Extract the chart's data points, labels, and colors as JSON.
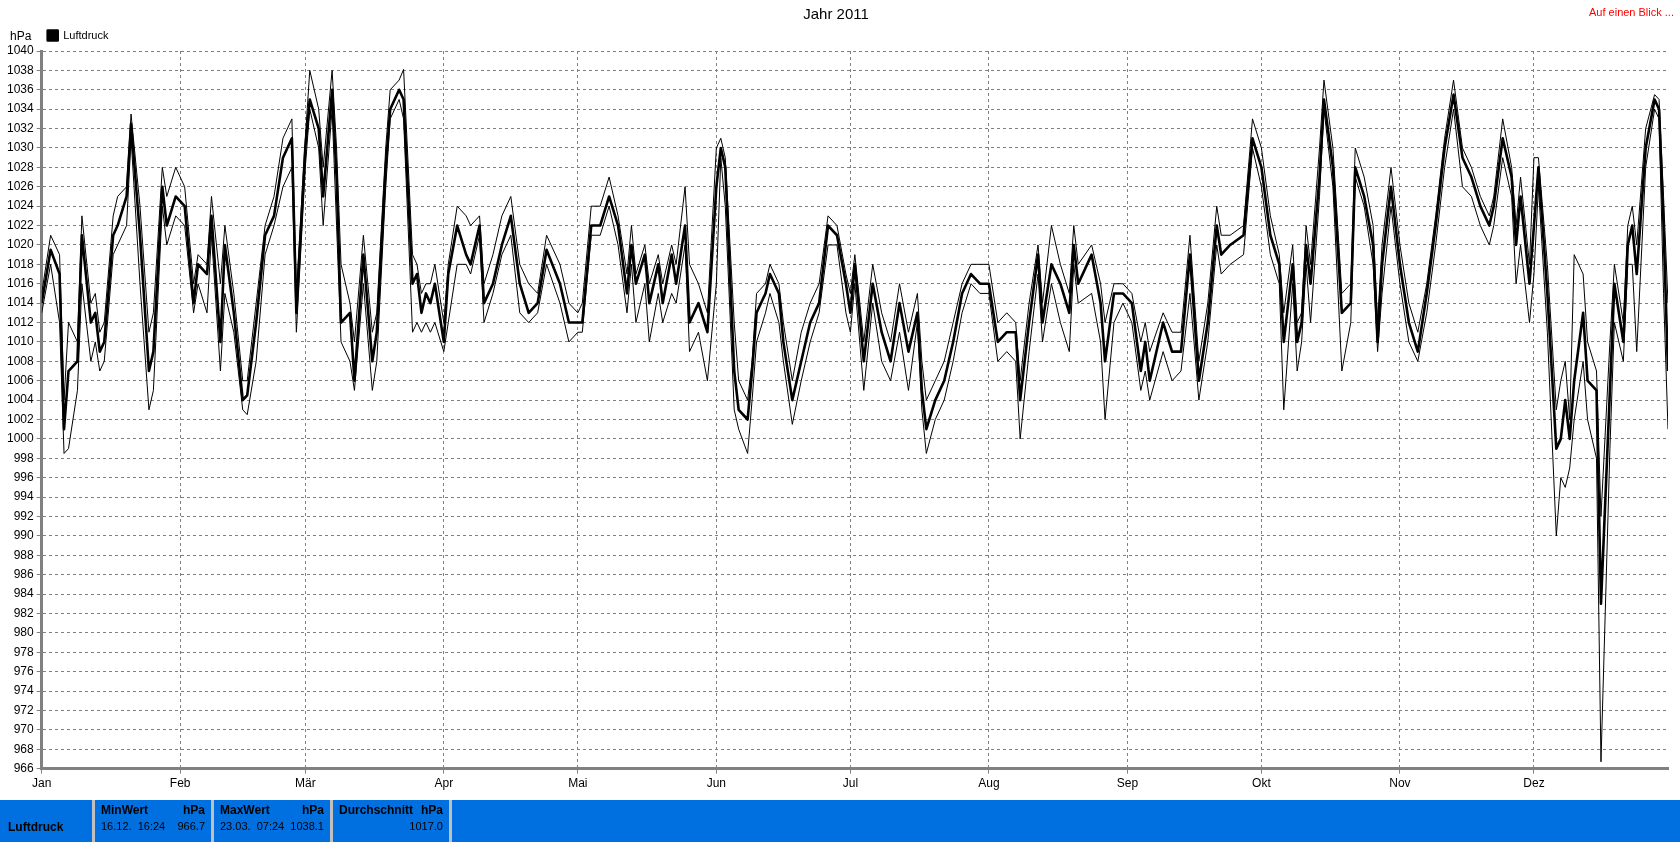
{
  "chart_data": {
    "type": "line",
    "title": "Jahr 2011",
    "ylabel": "hPa",
    "x": [
      "2011-01-01",
      "2011-01-03",
      "2011-01-05",
      "2011-01-06",
      "2011-01-07",
      "2011-01-09",
      "2011-01-10",
      "2011-01-12",
      "2011-01-13",
      "2011-01-14",
      "2011-01-15",
      "2011-01-17",
      "2011-01-18",
      "2011-01-20",
      "2011-01-21",
      "2011-01-23",
      "2011-01-25",
      "2011-01-26",
      "2011-01-28",
      "2011-01-29",
      "2011-01-31",
      "2011-02-02",
      "2011-02-04",
      "2011-02-05",
      "2011-02-07",
      "2011-02-08",
      "2011-02-10",
      "2011-02-11",
      "2011-02-13",
      "2011-02-15",
      "2011-02-16",
      "2011-02-18",
      "2011-02-20",
      "2011-02-22",
      "2011-02-24",
      "2011-02-26",
      "2011-02-27",
      "2011-03-01",
      "2011-03-02",
      "2011-03-04",
      "2011-03-05",
      "2011-03-07",
      "2011-03-08",
      "2011-03-09",
      "2011-03-11",
      "2011-03-12",
      "2011-03-14",
      "2011-03-16",
      "2011-03-17",
      "2011-03-19",
      "2011-03-20",
      "2011-03-22",
      "2011-03-23",
      "2011-03-25",
      "2011-03-26",
      "2011-03-27",
      "2011-03-28",
      "2011-03-29",
      "2011-03-30",
      "2011-04-01",
      "2011-04-02",
      "2011-04-04",
      "2011-04-06",
      "2011-04-07",
      "2011-04-09",
      "2011-04-10",
      "2011-04-12",
      "2011-04-14",
      "2011-04-16",
      "2011-04-18",
      "2011-04-20",
      "2011-04-22",
      "2011-04-24",
      "2011-04-27",
      "2011-04-29",
      "2011-05-01",
      "2011-05-02",
      "2011-05-04",
      "2011-05-06",
      "2011-05-08",
      "2011-05-10",
      "2011-05-12",
      "2011-05-13",
      "2011-05-14",
      "2011-05-16",
      "2011-05-17",
      "2011-05-19",
      "2011-05-20",
      "2011-05-22",
      "2011-05-23",
      "2011-05-25",
      "2011-05-26",
      "2011-05-28",
      "2011-05-30",
      "2011-06-01",
      "2011-06-02",
      "2011-06-03",
      "2011-06-05",
      "2011-06-06",
      "2011-06-08",
      "2011-06-09",
      "2011-06-10",
      "2011-06-12",
      "2011-06-13",
      "2011-06-15",
      "2011-06-16",
      "2011-06-18",
      "2011-06-20",
      "2011-06-22",
      "2011-06-24",
      "2011-06-26",
      "2011-06-28",
      "2011-06-30",
      "2011-07-01",
      "2011-07-02",
      "2011-07-04",
      "2011-07-06",
      "2011-07-08",
      "2011-07-10",
      "2011-07-12",
      "2011-07-14",
      "2011-07-16",
      "2011-07-17",
      "2011-07-18",
      "2011-07-20",
      "2011-07-22",
      "2011-07-24",
      "2011-07-26",
      "2011-07-28",
      "2011-07-30",
      "2011-08-01",
      "2011-08-03",
      "2011-08-05",
      "2011-08-07",
      "2011-08-08",
      "2011-08-10",
      "2011-08-12",
      "2011-08-13",
      "2011-08-15",
      "2011-08-17",
      "2011-08-19",
      "2011-08-20",
      "2011-08-21",
      "2011-08-24",
      "2011-08-26",
      "2011-08-27",
      "2011-08-29",
      "2011-08-31",
      "2011-09-02",
      "2011-09-04",
      "2011-09-05",
      "2011-09-06",
      "2011-09-09",
      "2011-09-11",
      "2011-09-13",
      "2011-09-15",
      "2011-09-17",
      "2011-09-19",
      "2011-09-21",
      "2011-09-22",
      "2011-09-24",
      "2011-09-27",
      "2011-09-29",
      "2011-10-01",
      "2011-10-03",
      "2011-10-05",
      "2011-10-06",
      "2011-10-08",
      "2011-10-09",
      "2011-10-10",
      "2011-10-11",
      "2011-10-12",
      "2011-10-14",
      "2011-10-15",
      "2011-10-17",
      "2011-10-19",
      "2011-10-21",
      "2011-10-22",
      "2011-10-24",
      "2011-10-26",
      "2011-10-27",
      "2011-10-28",
      "2011-10-30",
      "2011-11-01",
      "2011-11-03",
      "2011-11-05",
      "2011-11-07",
      "2011-11-09",
      "2011-11-11",
      "2011-11-13",
      "2011-11-15",
      "2011-11-17",
      "2011-11-19",
      "2011-11-21",
      "2011-11-22",
      "2011-11-24",
      "2011-11-26",
      "2011-11-27",
      "2011-11-28",
      "2011-11-30",
      "2011-12-01",
      "2011-12-02",
      "2011-12-04",
      "2011-12-06",
      "2011-12-07",
      "2011-12-08",
      "2011-12-09",
      "2011-12-10",
      "2011-12-12",
      "2011-12-13",
      "2011-12-15",
      "2011-12-16",
      "2011-12-18",
      "2011-12-19",
      "2011-12-21",
      "2011-12-22",
      "2011-12-23",
      "2011-12-24",
      "2011-12-26",
      "2011-12-28",
      "2011-12-29",
      "2011-12-30",
      "2011-12-31"
    ],
    "series": [
      {
        "color": "#000000",
        "values": [
          1015,
          1021,
          1019,
          1004,
          1012,
          1010,
          1023,
          1014,
          1015,
          1011,
          1012,
          1023,
          1025,
          1026,
          1033.5,
          1024,
          1011,
          1013,
          1028,
          1025,
          1028,
          1026,
          1016,
          1019,
          1018,
          1025,
          1016,
          1022,
          1015,
          1006,
          1006,
          1014,
          1022,
          1025,
          1031,
          1033,
          1015,
          1031,
          1038,
          1034,
          1028,
          1038,
          1030,
          1018,
          1014,
          1010,
          1021,
          1011,
          1013,
          1030,
          1036,
          1037,
          1038.1,
          1019,
          1018,
          1015,
          1016,
          1016,
          1018,
          1012,
          1018,
          1024,
          1023,
          1022,
          1023,
          1016,
          1019,
          1023,
          1025,
          1018,
          1016,
          1015,
          1021,
          1018,
          1014,
          1013,
          1014,
          1024,
          1024,
          1027,
          1023,
          1017,
          1022,
          1017,
          1020,
          1016,
          1019,
          1016,
          1020,
          1018,
          1026,
          1018,
          1016,
          1013,
          1030,
          1031,
          1029,
          1012,
          1006,
          1004,
          1008,
          1015,
          1016,
          1018,
          1016,
          1012,
          1006,
          1011,
          1014,
          1016,
          1023,
          1022,
          1017,
          1015,
          1019,
          1010,
          1018,
          1013,
          1010,
          1016,
          1011,
          1015,
          1008,
          1004,
          1006,
          1008,
          1012,
          1016,
          1018,
          1018,
          1018,
          1012,
          1013,
          1012,
          1006,
          1014,
          1020,
          1014,
          1022,
          1018,
          1015,
          1022,
          1018,
          1020,
          1016,
          1012,
          1016,
          1016,
          1015,
          1010,
          1012,
          1009,
          1013,
          1011,
          1011,
          1021,
          1008,
          1014,
          1024,
          1021,
          1021,
          1022,
          1033,
          1030,
          1023,
          1019,
          1013,
          1020,
          1012,
          1013,
          1022,
          1018,
          1030,
          1037,
          1030,
          1015,
          1016,
          1030,
          1027,
          1022,
          1012,
          1020,
          1028,
          1020,
          1014,
          1011,
          1016,
          1023,
          1031,
          1037,
          1030,
          1028,
          1025,
          1023,
          1025,
          1033,
          1028,
          1022,
          1027,
          1018,
          1029,
          1029,
          1018,
          1003,
          1006,
          1008,
          1002,
          1019,
          1017,
          1010,
          1007,
          992,
          1010,
          1018,
          1012,
          1022,
          1024,
          1020,
          1032,
          1035.5,
          1035,
          1025,
          1014
        ]
      },
      {
        "name": "Luftdruck",
        "color": "#000000",
        "values": [
          1014,
          1019.5,
          1017,
          1001,
          1007,
          1008,
          1021,
          1012,
          1013,
          1009,
          1010,
          1021,
          1022,
          1025,
          1032.5,
          1021,
          1007,
          1009,
          1026,
          1022,
          1025,
          1024,
          1014,
          1018,
          1017,
          1023,
          1010,
          1020,
          1013,
          1004,
          1004.5,
          1012,
          1021,
          1023,
          1029,
          1031,
          1013,
          1030,
          1035,
          1032,
          1025,
          1036,
          1027,
          1012,
          1013,
          1006,
          1019,
          1008,
          1011,
          1028,
          1034,
          1036,
          1035,
          1016,
          1017,
          1013,
          1015,
          1014,
          1016,
          1010,
          1017,
          1022,
          1019,
          1018,
          1022,
          1014,
          1016,
          1020,
          1023,
          1016,
          1013,
          1014,
          1019.5,
          1016,
          1012,
          1012,
          1012,
          1022,
          1022,
          1025,
          1022,
          1015,
          1020,
          1016,
          1019,
          1014,
          1018,
          1014,
          1019,
          1016,
          1022,
          1012,
          1014,
          1011,
          1026,
          1030,
          1028,
          1007,
          1003,
          1002,
          1007,
          1013,
          1015,
          1017,
          1015,
          1010,
          1004,
          1008,
          1012,
          1014,
          1022,
          1021,
          1016,
          1013,
          1018,
          1008,
          1016,
          1011,
          1008,
          1014,
          1009,
          1013,
          1005,
          1001,
          1004,
          1006,
          1010,
          1015,
          1017,
          1016,
          1016,
          1010,
          1011,
          1011,
          1004,
          1012,
          1019,
          1012,
          1018,
          1016,
          1013,
          1020,
          1016,
          1019,
          1014,
          1008,
          1015,
          1015,
          1014,
          1007,
          1010,
          1006,
          1012,
          1009,
          1009,
          1019,
          1006,
          1012,
          1022,
          1019,
          1020,
          1021,
          1031,
          1028,
          1021,
          1018,
          1010,
          1018,
          1010,
          1012,
          1020,
          1016,
          1027,
          1035,
          1028,
          1013,
          1014,
          1028,
          1025,
          1020,
          1010,
          1018,
          1026,
          1018,
          1012,
          1009,
          1015,
          1022,
          1030,
          1035.5,
          1029,
          1027,
          1024,
          1022,
          1024,
          1031,
          1027,
          1020,
          1025,
          1016,
          1022,
          1028,
          1015,
          999,
          1000,
          1004,
          1000,
          1006,
          1013,
          1006,
          1005,
          983,
          1005,
          1016,
          1010,
          1020,
          1022,
          1017,
          1030,
          1035,
          1034,
          1022,
          1007
        ]
      },
      {
        "color": "#000000",
        "values": [
          1013,
          1018,
          1012,
          998.5,
          999,
          1005,
          1016,
          1008,
          1010,
          1007,
          1008,
          1019,
          1020,
          1022,
          1031,
          1016,
          1003,
          1005,
          1024,
          1020,
          1023,
          1022,
          1013,
          1016,
          1013,
          1021,
          1007,
          1015,
          1011,
          1003,
          1002.5,
          1008,
          1019,
          1022,
          1026,
          1028,
          1011,
          1028,
          1034,
          1030,
          1022,
          1034,
          1022,
          1010,
          1008,
          1005,
          1016,
          1005,
          1008,
          1026,
          1033,
          1035,
          1033,
          1011,
          1012,
          1011,
          1012,
          1011,
          1012,
          1009,
          1012,
          1018,
          1018,
          1017,
          1021,
          1012,
          1015,
          1019,
          1021,
          1013,
          1012,
          1013,
          1018,
          1014,
          1010,
          1011,
          1011,
          1021,
          1021,
          1024,
          1020,
          1013,
          1018,
          1012,
          1016,
          1010,
          1015,
          1012,
          1015,
          1014,
          1020,
          1009,
          1011,
          1006,
          1016,
          1029,
          1024,
          1003,
          1001,
          998.5,
          1004,
          1010,
          1013,
          1015,
          1012,
          1008,
          1001.5,
          1006,
          1010,
          1013,
          1020,
          1020,
          1013,
          1011,
          1016,
          1005,
          1014,
          1008,
          1006,
          1011,
          1005,
          1012,
          1003,
          998.5,
          1002,
          1004,
          1008,
          1013,
          1016,
          1015,
          1015,
          1008,
          1009,
          1008,
          1000,
          1009,
          1017,
          1010,
          1016,
          1012,
          1009,
          1018,
          1014,
          1015,
          1010,
          1002,
          1012,
          1014,
          1012,
          1005,
          1007,
          1004,
          1009,
          1006,
          1007,
          1015,
          1004,
          1010,
          1020,
          1017,
          1018,
          1019,
          1030,
          1026,
          1019,
          1016,
          1003,
          1016,
          1007,
          1010,
          1018,
          1012,
          1025,
          1034,
          1026,
          1007,
          1012,
          1027,
          1024,
          1018,
          1009,
          1015,
          1024,
          1016,
          1010,
          1008,
          1013,
          1020,
          1028,
          1034,
          1026,
          1025,
          1022,
          1020,
          1022,
          1029,
          1025,
          1016,
          1020,
          1012,
          1017,
          1026,
          1011,
          990,
          996,
          995,
          997,
          1002,
          1008,
          1002,
          998,
          966.7,
          999,
          1012,
          1008,
          1018,
          1018,
          1009,
          1028,
          1034,
          1033,
          1015,
          1001
        ]
      }
    ],
    "xlim": [
      "2011-01-01",
      "2011-12-31"
    ],
    "xticks": [
      {
        "value": "2011-01-01",
        "label": "Jan"
      },
      {
        "value": "2011-02-01",
        "label": "Feb"
      },
      {
        "value": "2011-03-01",
        "label": "Mär"
      },
      {
        "value": "2011-04-01",
        "label": "Apr"
      },
      {
        "value": "2011-05-01",
        "label": "Mai"
      },
      {
        "value": "2011-06-01",
        "label": "Jun"
      },
      {
        "value": "2011-07-01",
        "label": "Jul"
      },
      {
        "value": "2011-08-01",
        "label": "Aug"
      },
      {
        "value": "2011-09-01",
        "label": "Sep"
      },
      {
        "value": "2011-10-01",
        "label": "Okt"
      },
      {
        "value": "2011-11-01",
        "label": "Nov"
      },
      {
        "value": "2011-12-01",
        "label": "Dez"
      }
    ],
    "ylim": [
      966,
      1040
    ],
    "yticks": [
      966,
      968,
      970,
      972,
      974,
      976,
      978,
      980,
      982,
      984,
      986,
      988,
      990,
      992,
      994,
      996,
      998,
      1000,
      1002,
      1004,
      1006,
      1008,
      1010,
      1012,
      1014,
      1016,
      1018,
      1020,
      1022,
      1024,
      1026,
      1028,
      1030,
      1032,
      1034,
      1036,
      1038,
      1040
    ],
    "grid": true,
    "legend": "top left",
    "marker": "none",
    "line_style": "solid",
    "annotations": [
      "Auf einen Blick ...",
      "Luftdruck",
      "MinWert",
      "hPa",
      "16.12.  16:24",
      "966.7",
      "MaxWert",
      "hPa",
      "23.03.  07:24",
      "1038.1",
      "Durchschnitt",
      "hPa",
      "1017.0"
    ]
  }
}
